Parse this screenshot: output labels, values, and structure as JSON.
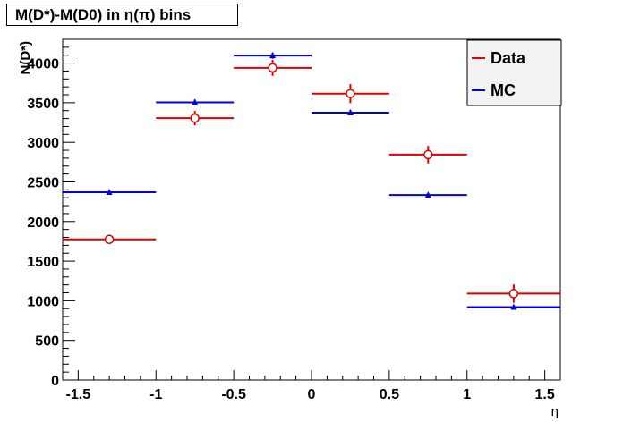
{
  "chart_data": {
    "type": "scatter",
    "title": "M(D*)-M(D0) in η(π) bins",
    "xlabel": "η",
    "ylabel": "N(D*)",
    "xlim": [
      -1.6,
      1.6
    ],
    "ylim": [
      0,
      4300
    ],
    "x_ticks": [
      -1.5,
      -1,
      -0.5,
      0,
      0.5,
      1,
      1.5
    ],
    "x_tick_labels": [
      "-1.5",
      "-1",
      "-0.5",
      "0",
      "0.5",
      "1",
      "1.5"
    ],
    "y_ticks": [
      0,
      500,
      1000,
      1500,
      2000,
      2500,
      3000,
      3500,
      4000
    ],
    "y_tick_labels": [
      "0",
      "500",
      "1000",
      "1500",
      "2000",
      "2500",
      "3000",
      "3500",
      "4000"
    ],
    "grid": false,
    "legend_position": "top-right",
    "series": [
      {
        "name": "Data",
        "color": "#dd0000",
        "marker": "open-circle",
        "points": [
          {
            "xlow": -1.6,
            "xhigh": -1.0,
            "x": -1.3,
            "y": 1775,
            "err": 60
          },
          {
            "xlow": -1.0,
            "xhigh": -0.5,
            "x": -0.75,
            "y": 3305,
            "err": 90
          },
          {
            "xlow": -0.5,
            "xhigh": 0.0,
            "x": -0.25,
            "y": 3940,
            "err": 100
          },
          {
            "xlow": 0.0,
            "xhigh": 0.5,
            "x": 0.25,
            "y": 3615,
            "err": 120
          },
          {
            "xlow": 0.5,
            "xhigh": 1.0,
            "x": 0.75,
            "y": 2845,
            "err": 110
          },
          {
            "xlow": 1.0,
            "xhigh": 1.6,
            "x": 1.3,
            "y": 1090,
            "err": 115
          }
        ]
      },
      {
        "name": "MC",
        "color": "#0000dd",
        "marker": "filled-triangle",
        "points": [
          {
            "xlow": -1.6,
            "xhigh": -1.0,
            "x": -1.3,
            "y": 2370,
            "err": 25
          },
          {
            "xlow": -1.0,
            "xhigh": -0.5,
            "x": -0.75,
            "y": 3505,
            "err": 35
          },
          {
            "xlow": -0.5,
            "xhigh": 0.0,
            "x": -0.25,
            "y": 4095,
            "err": 40
          },
          {
            "xlow": 0.0,
            "xhigh": 0.5,
            "x": 0.25,
            "y": 3375,
            "err": 35
          },
          {
            "xlow": 0.5,
            "xhigh": 1.0,
            "x": 0.75,
            "y": 2335,
            "err": 25
          },
          {
            "xlow": 1.0,
            "xhigh": 1.6,
            "x": 1.3,
            "y": 920,
            "err": 20
          }
        ]
      }
    ]
  }
}
